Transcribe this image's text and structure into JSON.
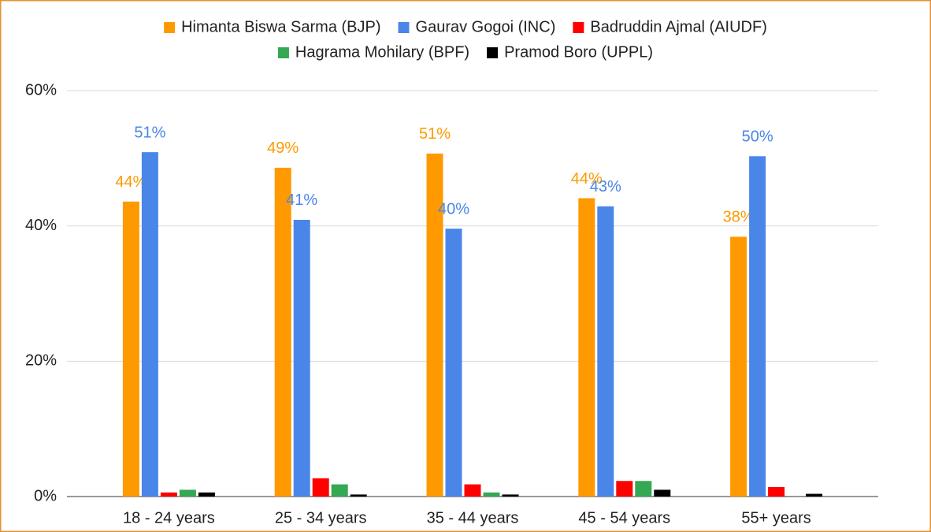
{
  "chart_data": {
    "type": "bar",
    "categories": [
      "18 - 24 years",
      "25 - 34 years",
      "35 - 44 years",
      "45 - 54 years",
      "55+ years"
    ],
    "series": [
      {
        "name": "Himanta Biswa Sarma (BJP)",
        "color": "#ff9900",
        "values": [
          43.6,
          48.6,
          50.7,
          44.1,
          38.4
        ],
        "value_labels": [
          "44%",
          "49%",
          "51%",
          "44%",
          "38%"
        ]
      },
      {
        "name": "Gaurav Gogoi (INC)",
        "color": "#4a86e8",
        "values": [
          50.9,
          40.9,
          39.6,
          42.9,
          50.3
        ],
        "value_labels": [
          "51%",
          "41%",
          "40%",
          "43%",
          "50%"
        ]
      },
      {
        "name": "Badruddin Ajmal (AIUDF)",
        "color": "#ff0000",
        "values": [
          0.6,
          2.7,
          1.8,
          2.3,
          1.4
        ]
      },
      {
        "name": "Hagrama Mohilary (BPF)",
        "color": "#34a853",
        "values": [
          1.0,
          1.8,
          0.6,
          2.3,
          0
        ]
      },
      {
        "name": "Pramod Boro (UPPL)",
        "color": "#000000",
        "values": [
          0.6,
          0.3,
          0.3,
          1.0,
          0.4
        ]
      }
    ],
    "ylim": [
      0,
      60
    ],
    "yticks": [
      {
        "value": 0,
        "label": "0%"
      },
      {
        "value": 20,
        "label": "20%"
      },
      {
        "value": 40,
        "label": "40%"
      },
      {
        "value": 60,
        "label": "60%"
      }
    ],
    "grid": true
  }
}
